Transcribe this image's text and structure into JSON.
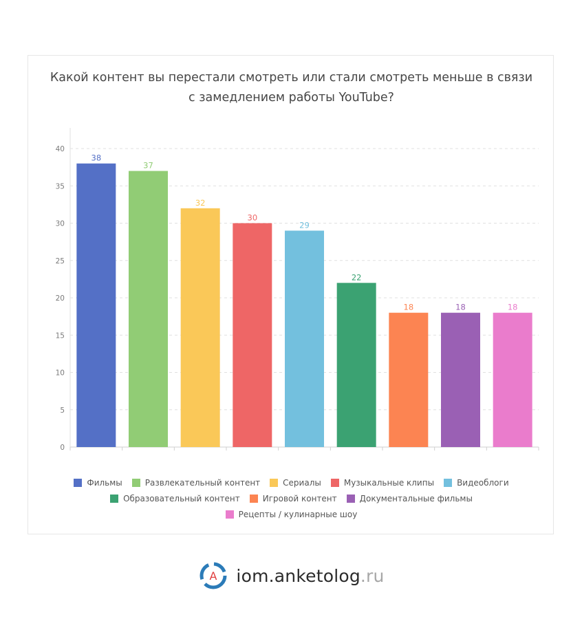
{
  "title_lines": [
    "Какой контент вы перестали смотреть или стали смотреть меньше в связи",
    "с замедлением работы YouTube?"
  ],
  "chart_data": {
    "type": "bar",
    "title": "Какой контент вы перестали смотреть или стали смотреть меньше в связи с замедлением работы YouTube?",
    "categories": [
      "Фильмы",
      "Развлекательный контент",
      "Сериалы",
      "Музыкальные клипы",
      "Видеоблоги",
      "Образовательный контент",
      "Игровой контент",
      "Документальные фильмы",
      "Рецепты / кулинарные шоу"
    ],
    "values": [
      38,
      37,
      32,
      30,
      29,
      22,
      18,
      18,
      18
    ],
    "colors": [
      "#5470c6",
      "#91cc75",
      "#fac858",
      "#ee6666",
      "#73c0de",
      "#3ba272",
      "#fc8452",
      "#9a60b4",
      "#ea7ccc"
    ],
    "ylim": [
      0,
      40
    ],
    "yticks": [
      0,
      5,
      10,
      15,
      20,
      25,
      30,
      35,
      40
    ],
    "grid": true,
    "gridlines_style": "dashed",
    "legend_position": "bottom",
    "data_labels": true
  },
  "footer": {
    "logo_letter": "А",
    "brand_main": "iom.anketolog",
    "brand_tld": ".ru",
    "logo_colors": {
      "ring": "#2b7bb8",
      "ring_light": "#7fc3e6",
      "letter": "#e03c3c"
    }
  }
}
